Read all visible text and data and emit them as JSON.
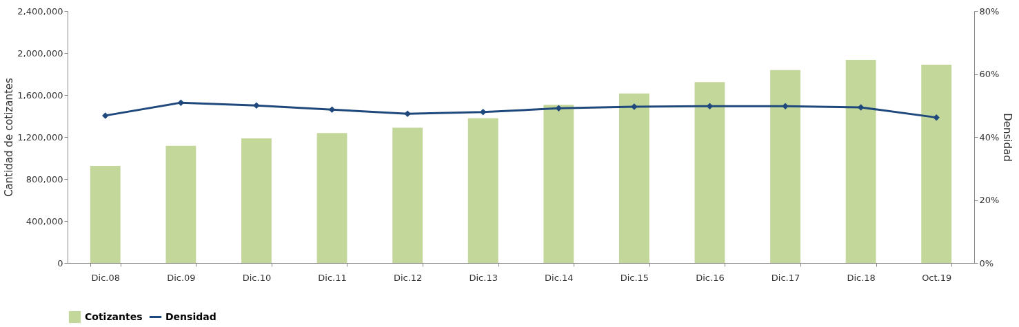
{
  "chart_data": {
    "type": "bar",
    "ylabel": "Cantidad de cotizantes",
    "y2label": "Densidad",
    "categories": [
      "Dic.08",
      "Dic.09",
      "Dic.10",
      "Dic.11",
      "Dic.12",
      "Dic.13",
      "Dic.14",
      "Dic.15",
      "Dic.16",
      "Dic.17",
      "Dic.18",
      "Oct.19"
    ],
    "series": [
      {
        "name": "Cotizantes",
        "color": "#c4d79b",
        "values": [
          925000,
          1117000,
          1187000,
          1238000,
          1289000,
          1379000,
          1506000,
          1615000,
          1723000,
          1838000,
          1934000,
          1889000
        ]
      },
      {
        "name": "Densidad",
        "type": "line",
        "axis": "y2",
        "color": "#1f497d",
        "marker": "diamond",
        "values": [
          46.8,
          50.9,
          50.0,
          48.7,
          47.4,
          47.9,
          49.1,
          49.6,
          49.8,
          49.8,
          49.4,
          46.2
        ]
      }
    ],
    "ylim": [
      0,
      2400000
    ],
    "yticks": [
      0,
      {
        "value": 400000,
        "label": "400,000"
      },
      {
        "value": 800000,
        "label": "800,000"
      },
      {
        "value": 1200000,
        "label": "1,200,000"
      },
      {
        "value": 1600000,
        "label": "1,600,000"
      },
      {
        "value": 2000000,
        "label": "2,000,000"
      },
      {
        "value": 2400000,
        "label": "2,400,000"
      }
    ],
    "y2lim": [
      0,
      80
    ],
    "y2ticks": [
      {
        "value": 0,
        "label": "0%"
      },
      {
        "value": 20,
        "label": "20%"
      },
      {
        "value": 40,
        "label": "40%"
      },
      {
        "value": 60,
        "label": "60%"
      },
      {
        "value": 80,
        "label": "80%"
      }
    ],
    "grid": false,
    "legend": "bottom"
  }
}
